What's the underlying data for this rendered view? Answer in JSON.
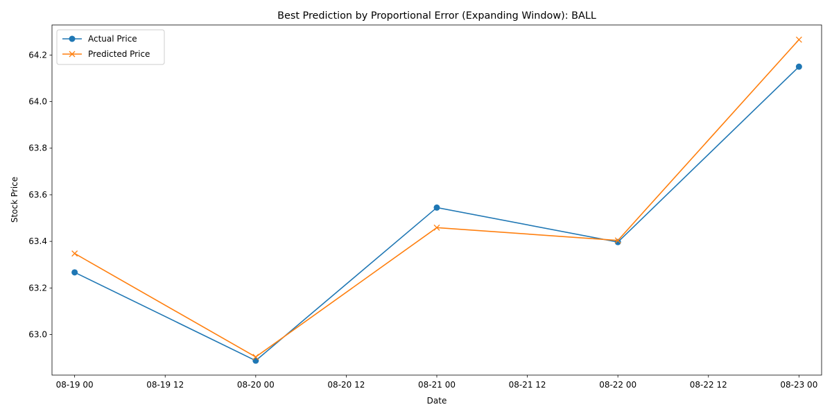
{
  "chart_data": {
    "type": "line",
    "title": "Best Prediction by Proportional Error (Expanding Window): BALL",
    "xlabel": "Date",
    "ylabel": "Stock Price",
    "x": [
      "08-19 00",
      "08-20 00",
      "08-21 00",
      "08-22 00",
      "08-23 00"
    ],
    "x_hours": [
      0,
      24,
      48,
      72,
      96
    ],
    "x_ticks": [
      "08-19 00",
      "08-19 12",
      "08-20 00",
      "08-20 12",
      "08-21 00",
      "08-21 12",
      "08-22 00",
      "08-22 12",
      "08-23 00"
    ],
    "x_tick_hours": [
      0,
      12,
      24,
      36,
      48,
      60,
      72,
      84,
      96
    ],
    "xlim_hours": [
      -3,
      99
    ],
    "y_ticks": [
      "63.0",
      "63.2",
      "63.4",
      "63.6",
      "63.8",
      "64.0",
      "64.2"
    ],
    "y_tick_values": [
      63.0,
      63.2,
      63.4,
      63.6,
      63.8,
      64.0,
      64.2
    ],
    "ylim": [
      62.826,
      64.329
    ],
    "grid": false,
    "legend_position": "top-left",
    "series": [
      {
        "name": "Actual Price",
        "color": "#1f77b4",
        "marker": "circle",
        "values": [
          63.267,
          62.888,
          63.545,
          63.397,
          64.15
        ]
      },
      {
        "name": "Predicted Price",
        "color": "#ff7f0e",
        "marker": "x",
        "values": [
          63.348,
          62.904,
          63.459,
          63.404,
          64.266
        ]
      }
    ]
  }
}
